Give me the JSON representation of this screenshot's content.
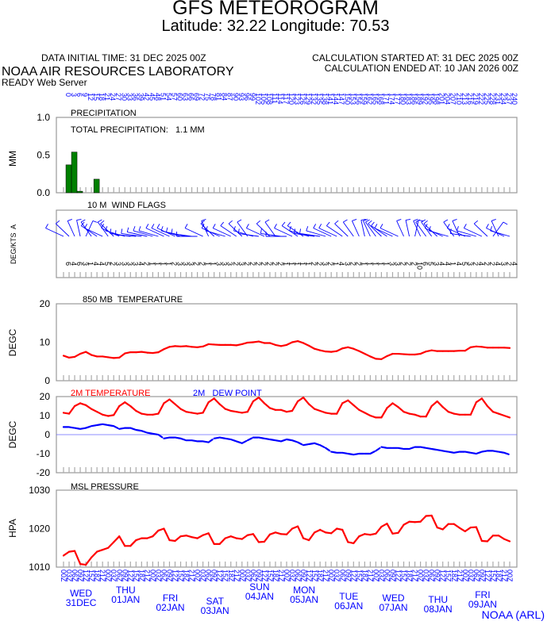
{
  "header": {
    "title": "GFS METEOROGRAM",
    "subtitle": "Latitude: 32.22 Longitude:  70.53",
    "data_initial_time": "DATA INITIAL TIME: 31 DEC 2025 00Z",
    "calc_started": "CALCULATION STARTED AT: 31 DEC 2025 00Z",
    "calc_ended": "CALCULATION ENDED AT: 10 JAN 2026 00Z",
    "lab": "NOAA AIR RESOURCES LABORATORY",
    "server": "READY Web Server"
  },
  "footer": {
    "credit": "NOAA (ARL)"
  },
  "colors": {
    "temp": "#ff0000",
    "dew": "#0000ff",
    "precip": "#008000",
    "wind": "#0000ff",
    "labels": "#0000ff"
  },
  "chart_data": [
    {
      "type": "bar",
      "title": "PRECIPITATION",
      "annotation": "TOTAL PRECIPITATION:   1.1 MM",
      "ylabel": "MM",
      "ylim": [
        0,
        1.0
      ],
      "yticks": [
        "1.0",
        "0.5",
        "0.0"
      ],
      "x_hours": [
        3,
        6,
        9,
        18
      ],
      "values": [
        0.37,
        0.54,
        0.02,
        0.18
      ]
    },
    {
      "type": "wind_flags",
      "title": "10 M  WIND FLAGS",
      "ylabel": "DEG/KTS  A",
      "direction_deg": [
        300,
        320,
        340,
        350,
        20,
        330,
        310,
        300,
        330,
        320,
        300,
        290,
        280,
        275,
        280,
        285,
        290,
        290,
        300,
        300,
        300,
        290,
        285,
        280,
        270,
        300,
        340,
        320,
        300,
        290,
        300,
        310,
        320,
        330,
        290,
        280,
        300,
        320,
        330,
        280,
        270,
        300,
        310,
        310,
        290,
        280,
        280,
        290,
        300,
        300,
        310,
        320,
        330,
        340,
        350,
        340,
        330,
        320,
        310,
        300,
        300,
        340,
        350,
        10,
        340,
        330,
        330,
        320,
        300,
        290,
        330,
        340,
        300,
        280,
        290,
        300,
        320,
        30,
        340,
        300,
        290
      ],
      "speed_kts": [
        "6",
        "4",
        "6",
        "3",
        "1",
        "4",
        "4",
        "5",
        "2",
        "3",
        "3",
        "3",
        "3",
        "4",
        "2",
        "1",
        "1",
        "1",
        "1",
        "2",
        "3",
        "3",
        "3",
        "2",
        "2",
        "1",
        "1",
        "3",
        "3",
        "3",
        "2",
        "3",
        "2",
        "2",
        "2",
        "2",
        "2",
        "2",
        "2",
        "1",
        "1",
        "1",
        "1",
        "1",
        "2",
        "2",
        "3",
        "2",
        "1",
        "4",
        "3",
        "2",
        "2",
        "1",
        "1",
        "1",
        "1",
        "1",
        "3",
        "3",
        "2",
        "2",
        "2",
        "10",
        "6",
        "5",
        "3",
        "4",
        "4",
        "1",
        "4",
        "5",
        "3",
        "2",
        "4",
        "2",
        "2",
        "4",
        "3",
        "2",
        "4"
      ]
    },
    {
      "type": "line",
      "title": "850 MB  TEMPERATURE",
      "ylabel": "DEGC",
      "ylim": [
        0,
        20
      ],
      "yticks": [
        "20",
        "10",
        "0"
      ],
      "x_step_hours": 3,
      "values": [
        6.5,
        6,
        6.2,
        7,
        7.5,
        6.7,
        6.3,
        6.3,
        6.1,
        5.9,
        6,
        7.1,
        7.4,
        7.4,
        7.5,
        7.3,
        7.2,
        7.4,
        8.2,
        8.8,
        9,
        8.9,
        9,
        8.8,
        8.7,
        8.9,
        9.5,
        9.4,
        9.3,
        9.3,
        9.3,
        9.2,
        9.5,
        9.9,
        10,
        10.2,
        9.8,
        9.8,
        9.3,
        9,
        9.3,
        10,
        10.3,
        9.8,
        9.1,
        8.3,
        7.9,
        7.6,
        7.5,
        7.7,
        8.4,
        8.7,
        8.3,
        7.7,
        7,
        6.3,
        5.7,
        5.6,
        6.4,
        7,
        7,
        6.9,
        6.8,
        6.8,
        7,
        7.6,
        7.9,
        7.7,
        7.7,
        7.7,
        7.7,
        7.8,
        7.8,
        8.7,
        8.9,
        8.8,
        8.6,
        8.6,
        8.6,
        8.6,
        8.5
      ]
    },
    {
      "type": "line",
      "ylabel": "DEGC",
      "ylim": [
        -20,
        20
      ],
      "yticks": [
        "20",
        "10",
        "0",
        "-10",
        "-20"
      ],
      "x_step_hours": 3,
      "series": [
        {
          "name": "2M TEMPERATURE",
          "values": [
            11.5,
            11,
            15,
            16.5,
            15.5,
            13.5,
            12,
            10.5,
            9.8,
            10.3,
            15,
            17,
            15,
            12.5,
            11,
            10.5,
            10.5,
            11,
            16.5,
            18.5,
            16,
            13.5,
            12,
            11.5,
            11,
            11.5,
            17,
            19,
            16,
            13.5,
            12.5,
            12,
            11.5,
            12,
            17.5,
            19.5,
            16.5,
            14,
            13,
            13,
            12,
            12.5,
            17.5,
            19.5,
            16,
            13.5,
            12.5,
            11.5,
            11,
            11,
            16.5,
            18,
            15.5,
            13,
            11.5,
            10,
            9,
            9,
            14,
            16.5,
            14.5,
            12,
            11,
            10.5,
            9.5,
            9.5,
            15,
            17.5,
            14.5,
            12,
            11,
            10.5,
            10.5,
            10.5,
            17,
            19,
            15,
            12,
            11,
            10,
            9
          ]
        },
        {
          "name": "2M   DEW POINT",
          "values": [
            4,
            4,
            3.5,
            3,
            3.5,
            4.5,
            5,
            5.5,
            5,
            4.5,
            3,
            3.5,
            3.5,
            2.5,
            2,
            1,
            0.5,
            0,
            -2,
            -1.5,
            -1.5,
            -2,
            -3,
            -3,
            -3.5,
            -3.5,
            -4,
            -2,
            -1.5,
            -2,
            -2.5,
            -3.5,
            -4.5,
            -3,
            -1.5,
            -1.5,
            -2,
            -2.5,
            -3,
            -3.5,
            -2.5,
            -3,
            -4,
            -5.5,
            -5,
            -4.5,
            -5.5,
            -7,
            -9,
            -9.5,
            -9.5,
            -10,
            -10.5,
            -10,
            -10,
            -10,
            -8.5,
            -6.5,
            -7,
            -7,
            -7,
            -7.5,
            -7.5,
            -6.5,
            -6.5,
            -7,
            -7.5,
            -8,
            -8.5,
            -9,
            -9.5,
            -9,
            -9,
            -9.5,
            -10,
            -9,
            -8.5,
            -8.5,
            -9,
            -9.5,
            -10.5
          ]
        }
      ]
    },
    {
      "type": "line",
      "title": "MSL PRESSURE",
      "ylabel": "HPA",
      "ylim": [
        1010,
        1030
      ],
      "yticks": [
        "1030",
        "1020",
        "1010"
      ],
      "x_step_hours": 3,
      "values": [
        1013,
        1014,
        1014.2,
        1010.8,
        1010.6,
        1012.5,
        1014,
        1014.5,
        1015,
        1016.5,
        1018,
        1015.5,
        1015.5,
        1017,
        1017.5,
        1017.5,
        1018,
        1019.5,
        1020,
        1017,
        1016.8,
        1018,
        1018.2,
        1017.8,
        1017.5,
        1018.3,
        1018.8,
        1016,
        1016,
        1017.5,
        1018,
        1017.5,
        1017.3,
        1018.3,
        1018.6,
        1016.5,
        1016.6,
        1018.5,
        1019,
        1018.6,
        1018.5,
        1020,
        1020.6,
        1017.5,
        1017,
        1019,
        1019.7,
        1019,
        1018.8,
        1020,
        1019.7,
        1016.5,
        1016.2,
        1018,
        1018.6,
        1018.4,
        1018.7,
        1020.5,
        1021.3,
        1018.7,
        1018.9,
        1021,
        1021.8,
        1021.7,
        1021.8,
        1023.3,
        1023.4,
        1020.3,
        1019.8,
        1021.2,
        1021.2,
        1020.2,
        1019.3,
        1020.3,
        1020.4,
        1016.8,
        1016.7,
        1018.2,
        1018.2,
        1017.3,
        1016.7
      ]
    }
  ],
  "x_axis": {
    "forecast_hours": [
      "0",
      "3",
      "6",
      "9",
      "12",
      "15",
      "18",
      "21",
      "24",
      "27",
      "30",
      "33",
      "36",
      "39",
      "42",
      "45",
      "48",
      "51",
      "54",
      "57",
      "60",
      "63",
      "66",
      "69",
      "72",
      "75",
      "78",
      "81",
      "84",
      "87",
      "90",
      "93",
      "96",
      "99",
      "102",
      "105",
      "108",
      "111",
      "114",
      "117",
      "120",
      "123",
      "126",
      "129",
      "132",
      "135",
      "138",
      "141",
      "144",
      "147",
      "150",
      "153",
      "156",
      "159",
      "162",
      "165",
      "168",
      "171",
      "174",
      "177",
      "180",
      "183",
      "186",
      "189",
      "192",
      "195",
      "198",
      "201",
      "204",
      "207",
      "210",
      "213",
      "216",
      "219",
      "222",
      "225",
      "228",
      "231",
      "234",
      "237",
      "240"
    ],
    "utc_hours": [
      "00Z",
      "03Z",
      "06Z",
      "09Z",
      "12Z",
      "15Z",
      "18Z",
      "21Z"
    ],
    "days": [
      {
        "weekday": "WED",
        "date": "31DEC"
      },
      {
        "weekday": "THU",
        "date": "01JAN"
      },
      {
        "weekday": "FRI",
        "date": "02JAN"
      },
      {
        "weekday": "SAT",
        "date": "03JAN"
      },
      {
        "weekday": "SUN",
        "date": "04JAN"
      },
      {
        "weekday": "MON",
        "date": "05JAN"
      },
      {
        "weekday": "TUE",
        "date": "06JAN"
      },
      {
        "weekday": "WED",
        "date": "07JAN"
      },
      {
        "weekday": "THU",
        "date": "08JAN"
      },
      {
        "weekday": "FRI",
        "date": "09JAN"
      }
    ]
  }
}
